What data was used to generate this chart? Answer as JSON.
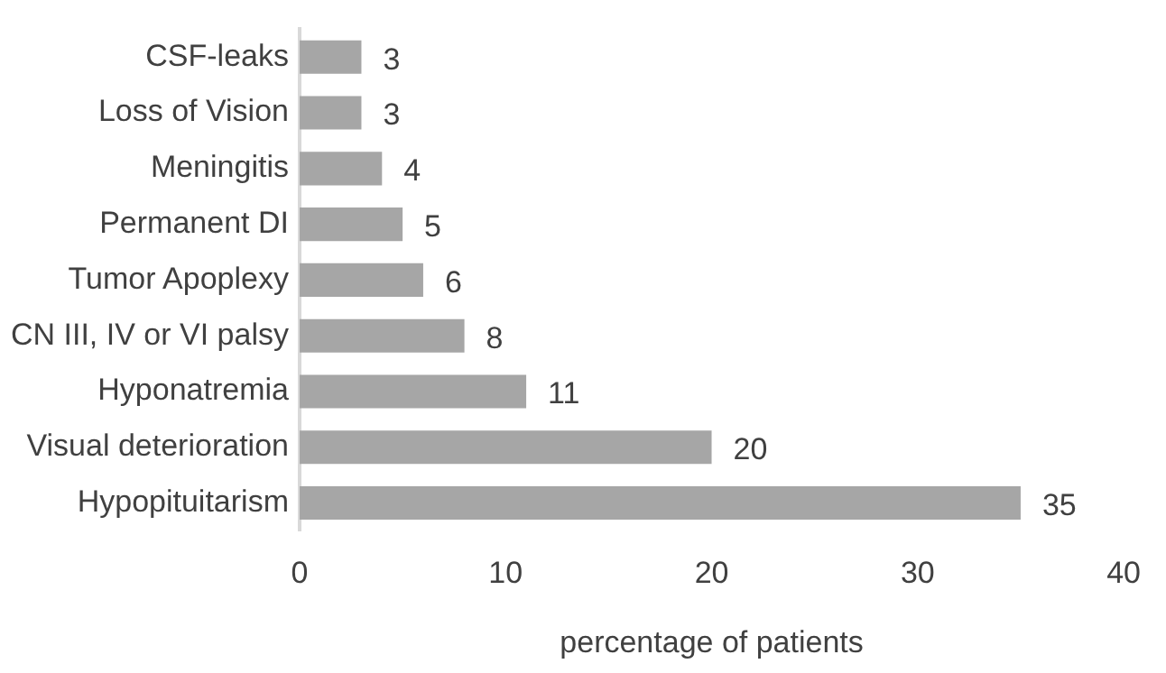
{
  "chart_data": {
    "type": "bar",
    "orientation": "horizontal",
    "xlabel": "percentage of patients",
    "categories": [
      "CSF-leaks",
      "Loss of Vision",
      "Meningitis",
      "Permanent DI",
      "Tumor Apoplexy",
      "CN III, IV or VI palsy",
      "Hyponatremia",
      "Visual deterioration",
      "Hypopituitarism"
    ],
    "values": [
      3,
      3,
      4,
      5,
      6,
      8,
      11,
      20,
      35
    ],
    "color": "#a6a6a6",
    "xlim": [
      0,
      40
    ],
    "xticks": [
      0,
      10,
      20,
      30,
      40
    ],
    "data_labels": true,
    "grid": false,
    "legend": false
  }
}
